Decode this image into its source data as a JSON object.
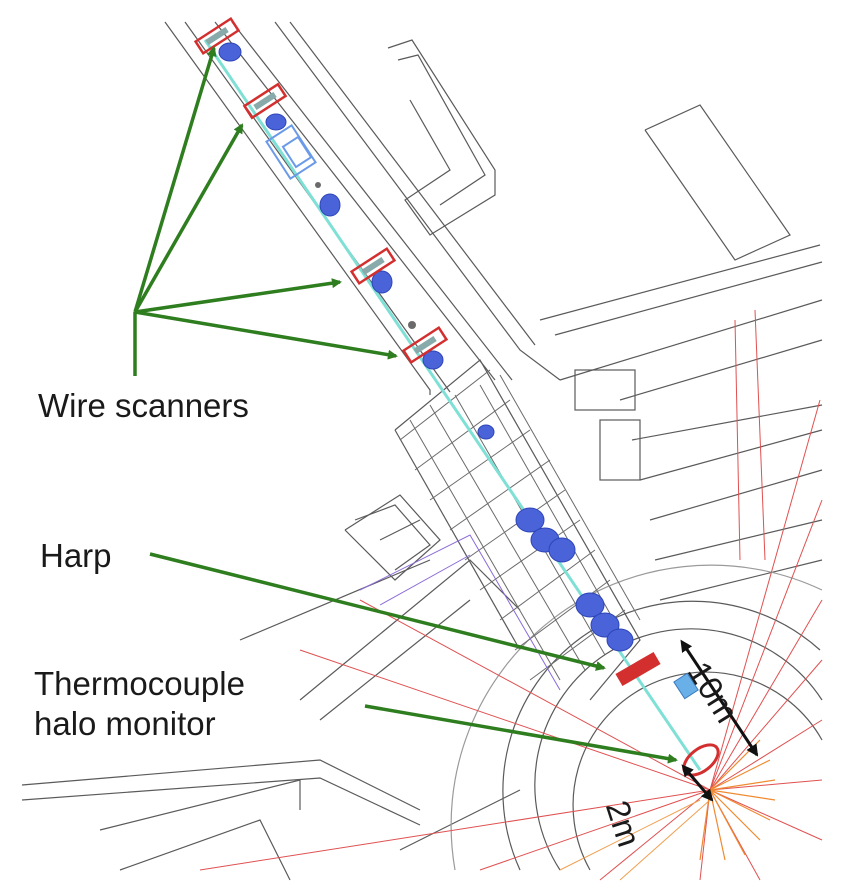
{
  "labels": {
    "wire_scanners": "Wire scanners",
    "harp": "Harp",
    "thermocouple_line1": "Thermocouple",
    "thermocouple_line2": "halo monitor",
    "dim_10m": "10m",
    "dim_2m": "2m"
  },
  "colors": {
    "arrow_green": "#2e7d1f",
    "marker_red": "#d32f2f",
    "beamline_blue": "#4a63d8",
    "beamline_cyan": "#7fe0d6",
    "wall_gray": "#555555",
    "ray_red": "#e05050"
  }
}
